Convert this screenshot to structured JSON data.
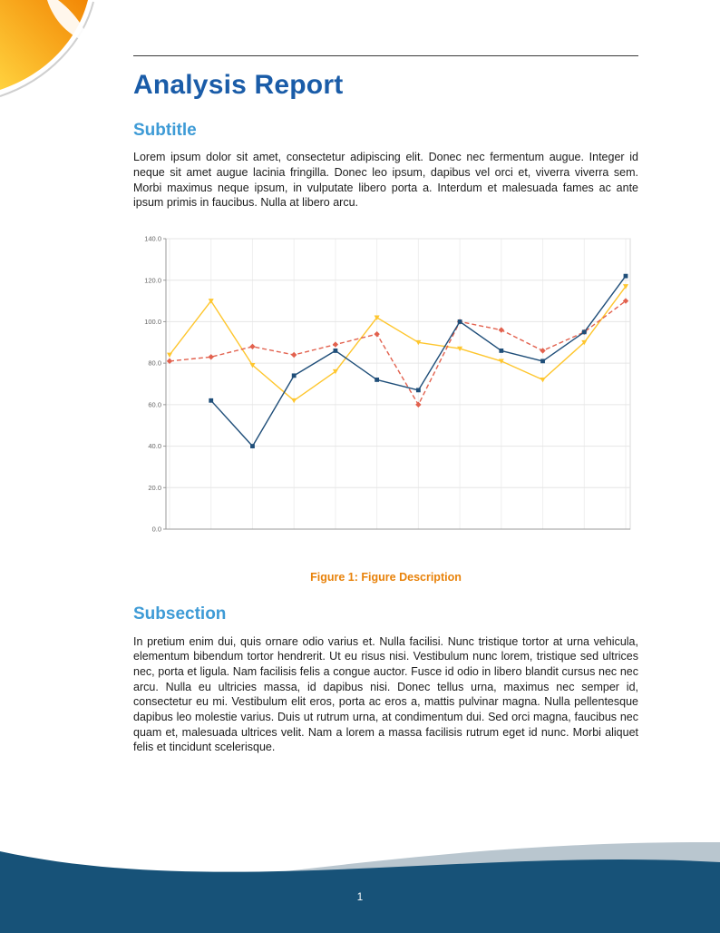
{
  "document": {
    "title": "Analysis Report",
    "sections": [
      {
        "heading": "Subtitle",
        "body": "Lorem ipsum dolor sit amet, consectetur adipiscing elit. Donec nec fermentum augue. Integer id neque sit amet augue lacinia fringilla. Donec leo ipsum, dapibus vel orci et, viverra viverra sem. Morbi maximus neque ipsum, in vulputate libero porta a. Interdum et malesuada fames ac ante ipsum primis in faucibus. Nulla at libero arcu."
      },
      {
        "heading": "Subsection",
        "body": "In pretium enim dui, quis ornare odio varius et. Nulla facilisi. Nunc tristique tortor at urna vehicula, elementum bibendum tortor hendrerit. Ut eu risus nisi. Vestibulum nunc lorem, tristique sed ultrices nec, porta et ligula. Nam facilisis felis a congue auctor. Fusce id odio in libero blandit cursus nec nec arcu. Nulla eu ultricies massa, id dapibus nisi. Donec tellus urna, maximus nec semper id, consectetur eu mi. Vestibulum elit eros, porta ac eros a, mattis pulvinar magna. Nulla pellentesque dapibus leo molestie varius. Duis ut rutrum urna, at condimentum dui. Sed orci magna, faucibus nec quam et, malesuada ultrices velit. Nam a lorem a massa facilisis rutrum eget id nunc. Morbi aliquet felis et tincidunt scelerisque."
      }
    ],
    "footer": {
      "page_number": "1"
    }
  },
  "figure": {
    "caption_label": "Figure 1:",
    "caption_description": "Figure Description"
  },
  "chart_data": {
    "type": "line",
    "title": "",
    "xlabel": "",
    "ylabel": "",
    "x": [
      1,
      2,
      3,
      4,
      5,
      6,
      7,
      8,
      9,
      10,
      11,
      12
    ],
    "series": [
      {
        "name": "series-1-dark-blue",
        "color": "#1f4e79",
        "marker": "square",
        "dash": "solid",
        "values": [
          null,
          62,
          40,
          74,
          86,
          72,
          67,
          100,
          86,
          81,
          95,
          122
        ]
      },
      {
        "name": "series-2-red-dashed",
        "color": "#e2614e",
        "marker": "diamond",
        "dash": "dashed",
        "values": [
          81,
          83,
          88,
          84,
          89,
          94,
          60,
          100,
          96,
          86,
          95,
          110
        ]
      },
      {
        "name": "series-3-yellow",
        "color": "#fec62e",
        "marker": "triangle",
        "dash": "solid",
        "values": [
          84,
          110,
          79,
          62,
          76,
          102,
          90,
          87,
          81,
          72,
          90,
          117
        ]
      }
    ],
    "ylim": [
      0,
      140
    ],
    "ytick_step": 20,
    "ytick_labels": [
      "0.0",
      "20.0",
      "40.0",
      "60.0",
      "80.0",
      "100.0",
      "120.0",
      "140.0"
    ],
    "grid": true,
    "legend": "none"
  },
  "colors": {
    "title_blue": "#1a5ca8",
    "heading_blue": "#3e9bd6",
    "caption_orange": "#e8820a",
    "footer_navy": "#175278",
    "footer_gray": "#b9c6cf",
    "deco_orange": "#f28705",
    "deco_yellow": "#ffd23e"
  }
}
